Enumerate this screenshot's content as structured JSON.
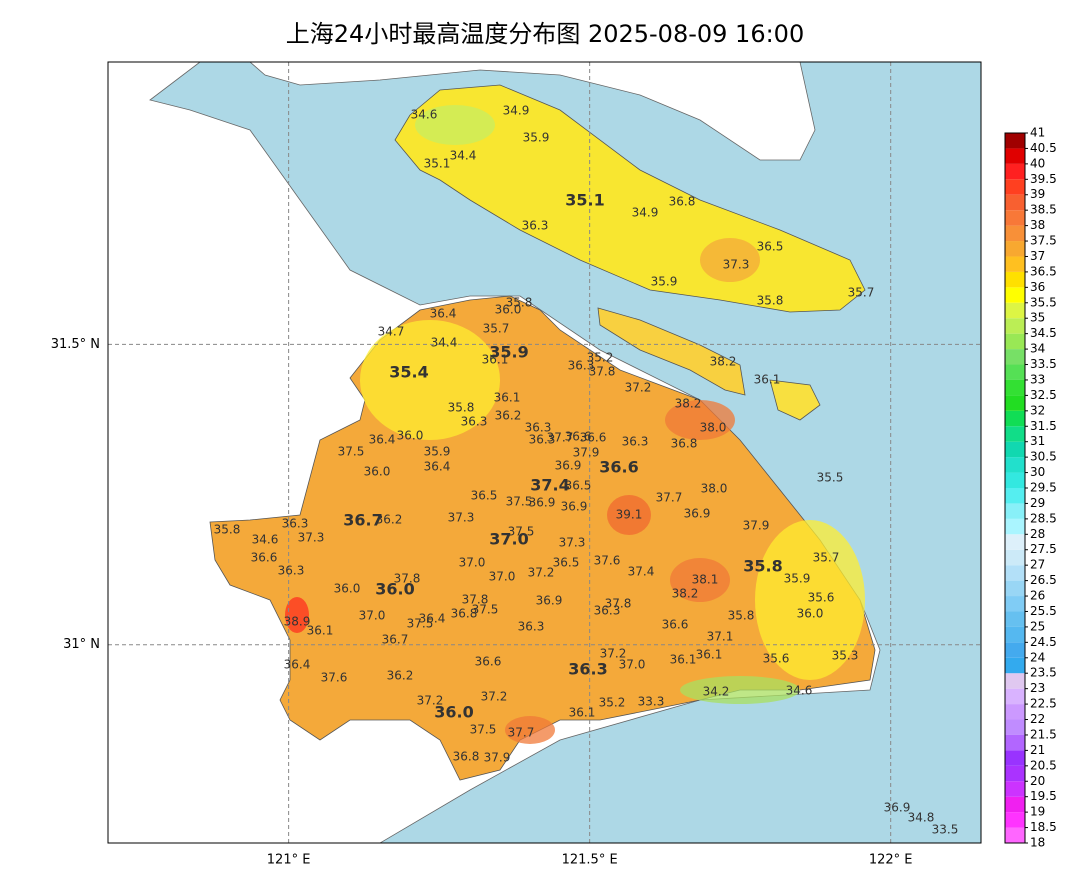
{
  "map": {
    "title": "上海24小时最高温度分布图 2025-08-09 16:00",
    "xticks": [
      {
        "value": 121,
        "label": "121° E"
      },
      {
        "value": 121.5,
        "label": "121.5° E"
      },
      {
        "value": 122,
        "label": "122° E"
      }
    ],
    "yticks": [
      {
        "value": 31.5,
        "label": "31.5° N"
      },
      {
        "value": 31,
        "label": "31° N"
      }
    ],
    "xlim": [
      120.7,
      122.15
    ],
    "ylim": [
      30.67,
      31.97
    ],
    "grid": true,
    "labels": [
      "34.6",
      "34.9",
      "35.9",
      "35.1",
      "34.4",
      "35.1",
      "34.9",
      "36.8",
      "36.3",
      "36.5",
      "37.3",
      "35.9",
      "35.8",
      "35.7",
      "35.8",
      "36.0",
      "36.4",
      "34.7",
      "35.7",
      "34.4",
      "35.9",
      "36.1",
      "35.2",
      "36.3",
      "37.8",
      "35.4",
      "37.2",
      "38.2",
      "36.1",
      "36.1",
      "35.8",
      "36.2",
      "36.3",
      "38.2",
      "38.0",
      "36.3",
      "36.3",
      "37.7",
      "36.6",
      "36.6",
      "37.9",
      "36.3",
      "36.8",
      "36.4",
      "36.0",
      "35.9",
      "36.4",
      "37.5",
      "36.0",
      "36.9",
      "36.6",
      "35.5",
      "37.4",
      "36.5",
      "36.5",
      "37.5",
      "36.9",
      "36.9",
      "37.7",
      "38.0",
      "39.1",
      "36.9",
      "37.9",
      "36.7",
      "36.2",
      "37.3",
      "35.8",
      "34.6",
      "36.3",
      "37.3",
      "37.0",
      "37.5",
      "37.3",
      "36.6",
      "35.7",
      "36.3",
      "37.0",
      "36.5",
      "37.6",
      "37.4",
      "35.8",
      "35.9",
      "38.1",
      "37.0",
      "37.2",
      "36.0",
      "36.0",
      "37.8",
      "38.2",
      "35.6",
      "37.8",
      "36.9",
      "37.8",
      "36.3",
      "38.9",
      "37.0",
      "37.5",
      "36.4",
      "36.8",
      "37.5",
      "35.8",
      "36.0",
      "36.1",
      "36.3",
      "36.6",
      "37.1",
      "36.7",
      "36.6",
      "37.2",
      "36.1",
      "36.1",
      "37.0",
      "36.3",
      "35.6",
      "35.3",
      "36.4",
      "36.2",
      "37.6",
      "34.2",
      "34.6",
      "37.2",
      "37.2",
      "35.2",
      "33.3",
      "36.0",
      "36.1",
      "37.5",
      "37.7",
      "36.8",
      "37.9",
      "36.9",
      "34.8",
      "33.5"
    ],
    "colorbar": {
      "levels": [
        18,
        18.5,
        19,
        19.5,
        20,
        20.5,
        21,
        21.5,
        22,
        22.5,
        23,
        23.5,
        24,
        24.5,
        25,
        25.5,
        26,
        26.5,
        27,
        27.5,
        28,
        28.5,
        29,
        29.5,
        30,
        30.5,
        31,
        31.5,
        32,
        32.5,
        33,
        33.5,
        34,
        34.5,
        35,
        35.5,
        36,
        36.5,
        37,
        37.5,
        38,
        38.5,
        39,
        39.5,
        40,
        40.5,
        41
      ],
      "colors": [
        "#ff66ff",
        "#ff33ff",
        "#f020f0",
        "#cc33ff",
        "#aa33ff",
        "#9933ff",
        "#b266ff",
        "#c08cff",
        "#cc99ff",
        "#d9b3ff",
        "#e0c8f0",
        "#33aaee",
        "#44aaee",
        "#55b8f0",
        "#66c0f0",
        "#80ccf5",
        "#99d6f5",
        "#b3e0f8",
        "#cceaf8",
        "#ddf0fa",
        "#aaf5ff",
        "#88f0f8",
        "#55eef0",
        "#33e8e0",
        "#22e0cc",
        "#11d8b0",
        "#11dd88",
        "#11dd55",
        "#22dd22",
        "#33e033",
        "#55e055",
        "#77e066",
        "#99e855",
        "#bbee55",
        "#ddf544",
        "#ffff00",
        "#ffe000",
        "#ffc020",
        "#f8a830",
        "#f89038",
        "#f87838",
        "#f86030",
        "#ff4020",
        "#ff2020",
        "#e00000",
        "#a00000"
      ]
    }
  }
}
